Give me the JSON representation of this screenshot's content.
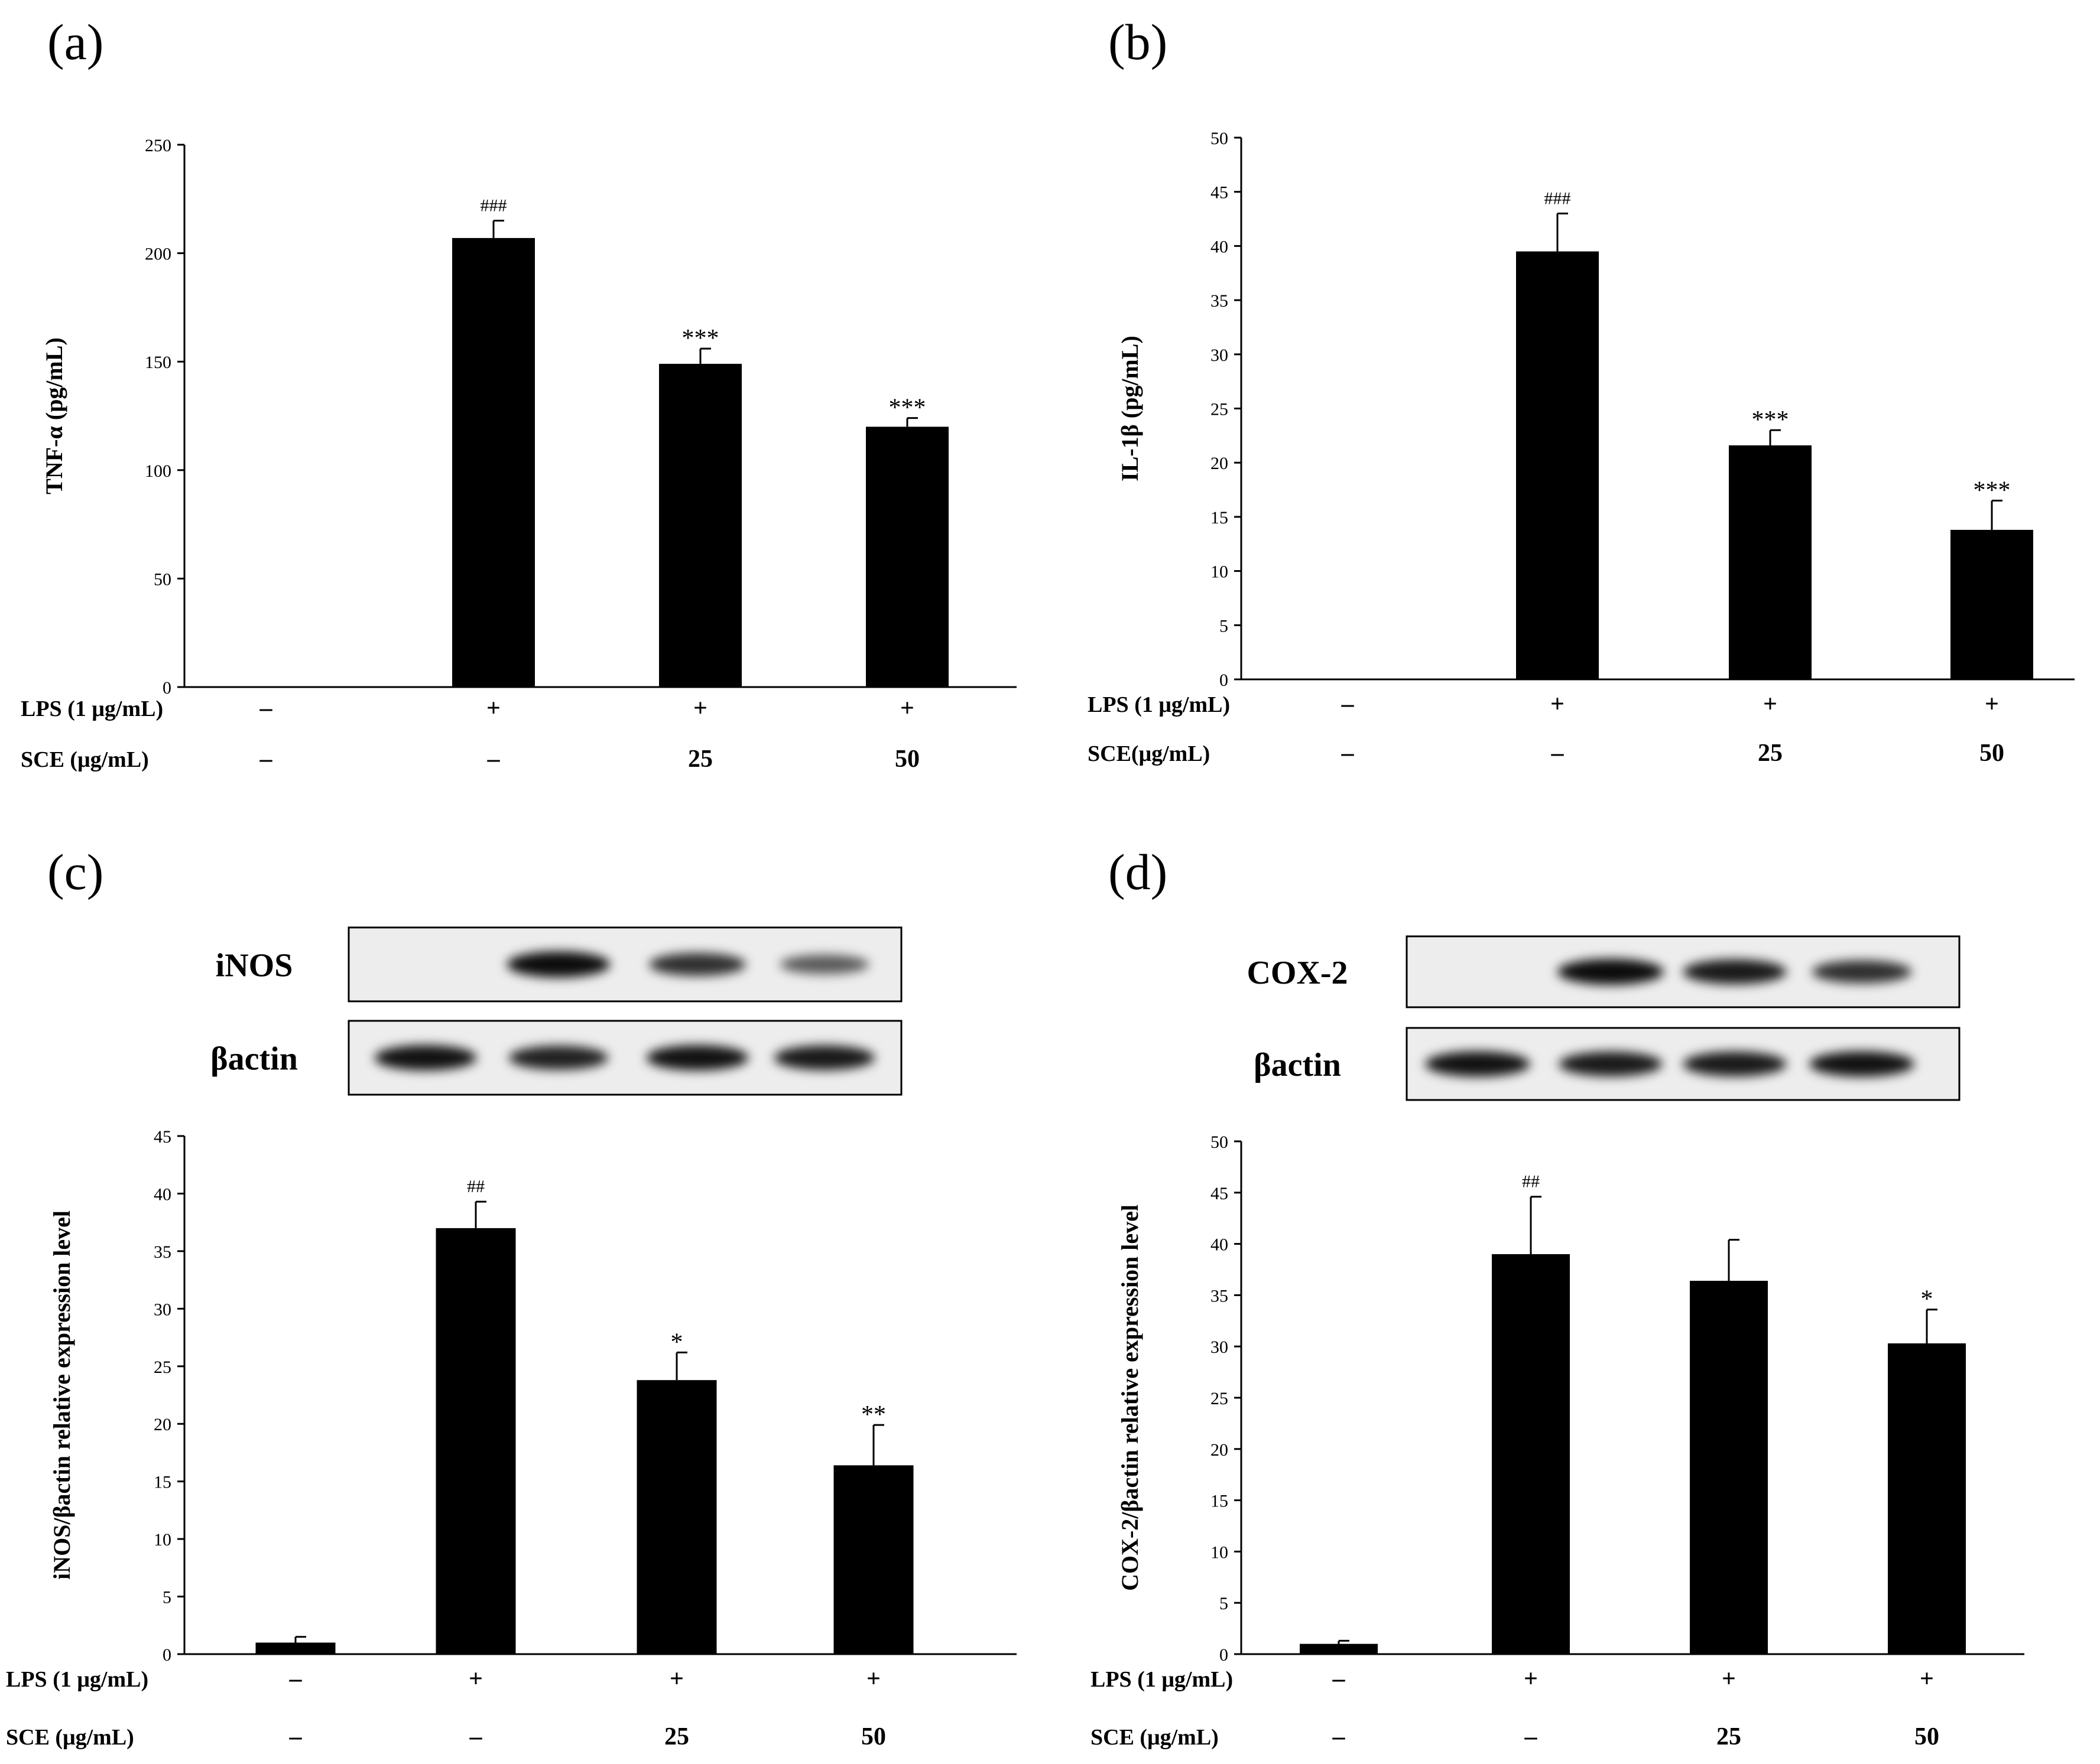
{
  "colors": {
    "bar": "#000000",
    "axis": "#000000",
    "background": "#ffffff"
  },
  "chart_data": [
    {
      "panel": "(a)",
      "type": "bar",
      "ylabel": "TNF-α (pg/mL)",
      "ylim": [
        0,
        250
      ],
      "yticks": [
        "0",
        "50",
        "100",
        "150",
        "200",
        "250"
      ],
      "grid": false,
      "values": [
        0,
        207,
        149,
        120
      ],
      "errors": [
        0,
        8,
        7,
        4
      ],
      "significance": [
        "",
        "###",
        "***",
        "***"
      ],
      "conditions": [
        {
          "label": "LPS (1 μg/mL)",
          "values": [
            "–",
            "+",
            "+",
            "+"
          ]
        },
        {
          "label": "SCE (μg/mL)",
          "values": [
            "–",
            "–",
            "25",
            "50"
          ]
        }
      ]
    },
    {
      "panel": "(b)",
      "type": "bar",
      "ylabel": "IL-1β (pg/mL)",
      "ylim": [
        0,
        50
      ],
      "yticks": [
        "0",
        "5",
        "10",
        "15",
        "20",
        "25",
        "30",
        "35",
        "40",
        "45",
        "50"
      ],
      "grid": false,
      "values": [
        0,
        39.5,
        21.6,
        13.8
      ],
      "errors": [
        0,
        3.5,
        1.4,
        2.7
      ],
      "significance": [
        "",
        "###",
        "***",
        "***"
      ],
      "conditions": [
        {
          "label": "LPS (1 μg/mL)",
          "values": [
            "–",
            "+",
            "+",
            "+"
          ]
        },
        {
          "label": "SCE(μg/mL)",
          "values": [
            "–",
            "–",
            "25",
            "50"
          ]
        }
      ]
    },
    {
      "panel": "(c)",
      "type": "bar",
      "ylabel": "iNOS/βactin relative expression level",
      "ylim": [
        0,
        45
      ],
      "yticks": [
        "0",
        "5",
        "10",
        "15",
        "20",
        "25",
        "30",
        "35",
        "40",
        "45"
      ],
      "grid": false,
      "values": [
        1.0,
        37.0,
        23.8,
        16.4
      ],
      "errors": [
        0.5,
        2.3,
        2.4,
        3.5
      ],
      "significance": [
        "",
        "##",
        "*",
        "**"
      ],
      "blot": {
        "rows": [
          "iNOS",
          "βactin"
        ],
        "intensity": [
          [
            0,
            1.0,
            0.75,
            0.45
          ],
          [
            0.95,
            0.85,
            0.95,
            0.9
          ]
        ]
      },
      "conditions": [
        {
          "label": "LPS (1 μg/mL)",
          "values": [
            "–",
            "+",
            "+",
            "+"
          ]
        },
        {
          "label": "SCE (μg/mL)",
          "values": [
            "–",
            "–",
            "25",
            "50"
          ]
        }
      ]
    },
    {
      "panel": "(d)",
      "type": "bar",
      "ylabel": "COX-2/βactin relative expression level",
      "ylim": [
        0,
        50
      ],
      "yticks": [
        "0",
        "5",
        "10",
        "15",
        "20",
        "25",
        "30",
        "35",
        "40",
        "45",
        "50"
      ],
      "grid": false,
      "values": [
        1.0,
        39.0,
        36.4,
        30.3
      ],
      "errors": [
        0.3,
        5.6,
        4.0,
        3.3
      ],
      "significance": [
        "",
        "##",
        "",
        "*"
      ],
      "blot": {
        "rows": [
          "COX-2",
          "βactin"
        ],
        "intensity": [
          [
            0,
            1.0,
            0.9,
            0.75
          ],
          [
            0.95,
            0.9,
            0.9,
            0.95
          ]
        ]
      },
      "conditions": [
        {
          "label": "LPS (1 μg/mL)",
          "values": [
            "–",
            "+",
            "+",
            "+"
          ]
        },
        {
          "label": "SCE (μg/mL)",
          "values": [
            "–",
            "–",
            "25",
            "50"
          ]
        }
      ]
    }
  ]
}
